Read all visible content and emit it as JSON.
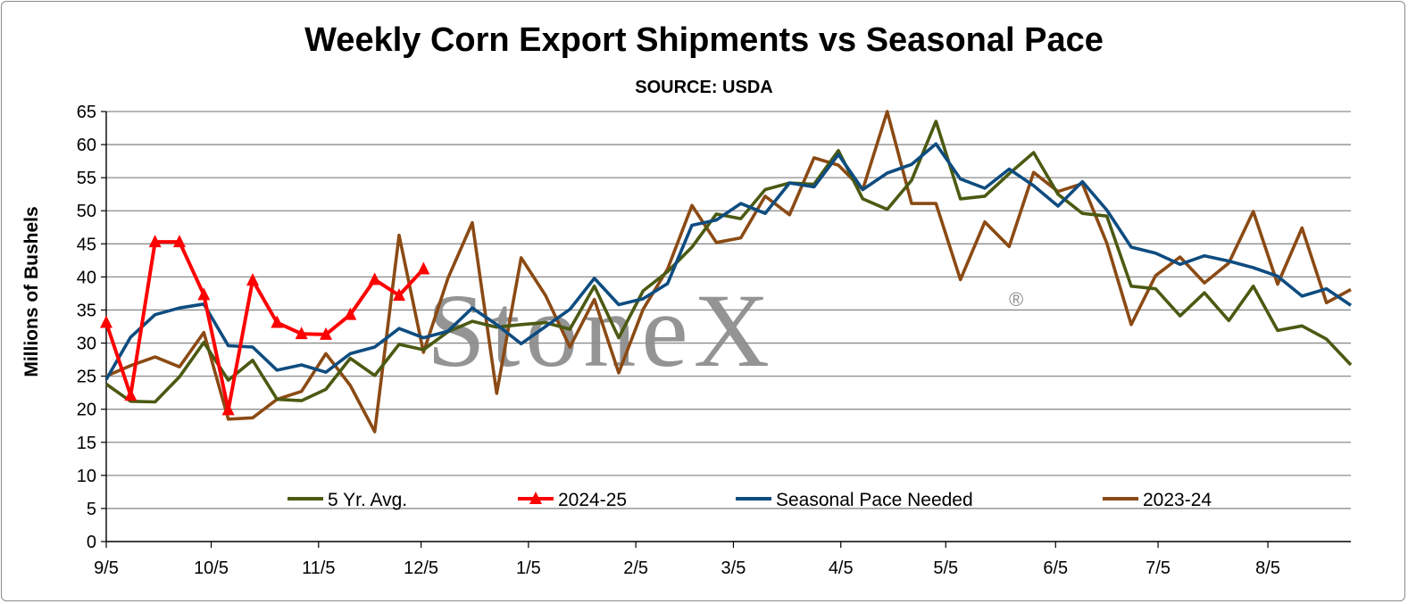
{
  "chart_data": {
    "type": "line",
    "title": "Weekly Corn Export Shipments vs Seasonal Pace",
    "subtitle": "SOURCE: USDA",
    "xlabel": "",
    "ylabel": "Millions of Bushels",
    "ylim": [
      0,
      65
    ],
    "yticks": [
      0,
      5,
      10,
      15,
      20,
      25,
      30,
      35,
      40,
      45,
      50,
      55,
      60,
      65
    ],
    "xtick_labels": [
      "9/5",
      "10/5",
      "11/5",
      "12/5",
      "1/5",
      "2/5",
      "3/5",
      "4/5",
      "5/5",
      "6/5",
      "7/5",
      "8/5"
    ],
    "xtick_weeks": [
      0,
      4.3,
      8.7,
      12.9,
      17.3,
      21.7,
      25.7,
      30.1,
      34.4,
      38.9,
      43.1,
      47.6
    ],
    "x_weeks_total": 52,
    "grid": "horizontal",
    "legend_placement": "bottom-inside",
    "watermark": "StoneX",
    "series": [
      {
        "name": "5 Yr. Avg.",
        "color": "#4a5a12",
        "marker": "none",
        "values": [
          23.8,
          21.2,
          21.1,
          24.9,
          30.1,
          24.4,
          27.4,
          21.5,
          21.3,
          23.0,
          27.7,
          25.1,
          29.8,
          29.0,
          31.7,
          33.3,
          32.4,
          32.8,
          33.1,
          32.1,
          38.6,
          30.8,
          37.9,
          40.8,
          44.5,
          49.5,
          48.8,
          53.2,
          54.2,
          54.0,
          59.1,
          51.8,
          50.2,
          54.6,
          63.5,
          51.8,
          52.2,
          55.6,
          58.8,
          52.5,
          49.6,
          49.2,
          38.6,
          38.2,
          34.1,
          37.6,
          33.4,
          38.6,
          31.9,
          32.6,
          30.6,
          26.7
        ]
      },
      {
        "name": "2024-25",
        "color": "#ff0000",
        "marker": "triangle",
        "values": [
          33.1,
          22.1,
          45.3,
          45.3,
          37.3,
          19.9,
          39.5,
          33.1,
          31.4,
          31.3,
          34.3,
          39.6,
          37.2,
          41.2
        ]
      },
      {
        "name": "Seasonal Pace Needed",
        "color": "#0e4c80",
        "marker": "none",
        "values": [
          24.5,
          30.9,
          34.3,
          35.3,
          35.9,
          29.6,
          29.4,
          25.9,
          26.7,
          25.6,
          28.4,
          29.4,
          32.2,
          30.8,
          31.8,
          35.3,
          32.8,
          29.9,
          32.5,
          35.1,
          39.8,
          35.8,
          36.7,
          39.0,
          47.8,
          48.6,
          51.1,
          49.6,
          54.2,
          53.6,
          58.5,
          53.2,
          55.7,
          57.0,
          60.1,
          54.8,
          53.4,
          56.3,
          53.8,
          50.7,
          54.4,
          50.1,
          44.5,
          43.6,
          41.9,
          43.2,
          42.4,
          41.4,
          40.1,
          37.1,
          38.2,
          35.7
        ]
      },
      {
        "name": "2023-24",
        "color": "#8b4a14",
        "marker": "none",
        "values": [
          25.0,
          26.6,
          27.9,
          26.4,
          31.6,
          18.5,
          18.7,
          21.5,
          22.7,
          28.4,
          23.6,
          16.6,
          46.3,
          28.6,
          39.8,
          48.2,
          22.4,
          42.9,
          37.2,
          29.4,
          36.6,
          25.5,
          35.1,
          41.2,
          50.8,
          45.2,
          45.9,
          52.2,
          49.4,
          58.0,
          56.9,
          53.2,
          65.0,
          51.1,
          51.1,
          39.6,
          48.3,
          44.6,
          55.8,
          52.9,
          54.1,
          45.1,
          32.8,
          40.2,
          43.0,
          39.1,
          42.1,
          49.9,
          38.9,
          47.4,
          36.1,
          38.1
        ]
      }
    ]
  }
}
